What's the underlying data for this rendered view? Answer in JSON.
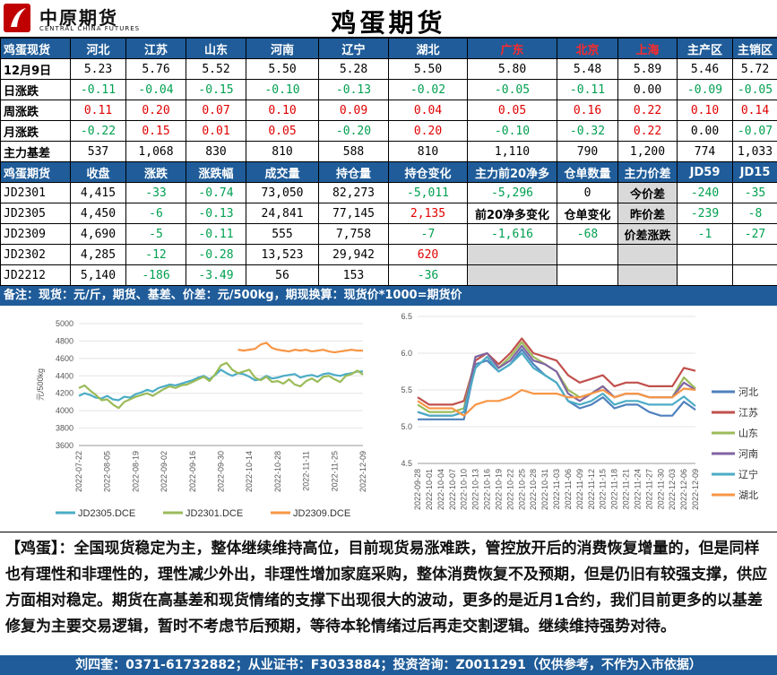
{
  "header": {
    "brand_cn": "中原期货",
    "brand_en": "CENTRAL CHINA FUTURES",
    "title": "鸡蛋期货"
  },
  "spot": {
    "head": "鸡蛋现货",
    "regions": [
      "河北",
      "江苏",
      "山东",
      "河南",
      "辽宁",
      "湖北",
      "广东",
      "北京",
      "上海",
      "主产区",
      "主销区"
    ],
    "red_regions": [
      6,
      7,
      8
    ],
    "rows": [
      {
        "label": "12月9日",
        "values": [
          "5.23",
          "5.76",
          "5.52",
          "5.50",
          "5.28",
          "5.50",
          "5.80",
          "5.48",
          "5.89",
          "5.46",
          "5.72"
        ]
      },
      {
        "label": "日涨跌",
        "values": [
          "-0.11",
          "-0.04",
          "-0.15",
          "-0.10",
          "-0.13",
          "-0.02",
          "-0.05",
          "-0.11",
          "0.00",
          "-0.09",
          "-0.05"
        ]
      },
      {
        "label": "周涨跌",
        "values": [
          "0.11",
          "0.20",
          "0.07",
          "0.10",
          "0.09",
          "0.04",
          "0.05",
          "0.16",
          "0.22",
          "0.10",
          "0.14"
        ]
      },
      {
        "label": "月涨跌",
        "values": [
          "-0.22",
          "0.15",
          "0.01",
          "0.05",
          "-0.20",
          "0.20",
          "-0.10",
          "-0.32",
          "0.22",
          "0.00",
          "-0.07"
        ]
      },
      {
        "label": "主力基差",
        "values": [
          "537",
          "1,068",
          "830",
          "810",
          "588",
          "810",
          "1,110",
          "790",
          "1,200",
          "774",
          "1,033"
        ]
      }
    ]
  },
  "futures": {
    "head": [
      "鸡蛋期货",
      "收盘",
      "涨跌",
      "涨跌幅",
      "成交量",
      "持仓量",
      "持仓变化",
      "主力前20净多",
      "仓单数量",
      "主力价差",
      "JD59",
      "JD15"
    ],
    "rows": [
      {
        "contract": "JD2301",
        "close": "4,415",
        "chg": "-33",
        "pct": "-0.74",
        "vol": "73,050",
        "oi": "82,273",
        "oi_chg": "-5,011"
      },
      {
        "contract": "JD2305",
        "close": "4,450",
        "chg": "-6",
        "pct": "-0.13",
        "vol": "24,841",
        "oi": "77,145",
        "oi_chg": "2,135"
      },
      {
        "contract": "JD2309",
        "close": "4,690",
        "chg": "-5",
        "pct": "-0.11",
        "vol": "555",
        "oi": "7,758",
        "oi_chg": "-7"
      },
      {
        "contract": "JD2302",
        "close": "4,285",
        "chg": "-12",
        "pct": "-0.28",
        "vol": "13,523",
        "oi": "29,942",
        "oi_chg": "620"
      },
      {
        "contract": "JD2212",
        "close": "5,140",
        "chg": "-186",
        "pct": "-3.49",
        "vol": "56",
        "oi": "153",
        "oi_chg": "-36"
      }
    ],
    "net_long_top20": "-5,296",
    "net_long_change_label": "前20净多变化",
    "net_long_change": "-1,616",
    "warrant_qty": "0",
    "warrant_change_label": "仓单变化",
    "warrant_change": "-68",
    "spread_labels": [
      "今价差",
      "昨价差",
      "价差涨跌"
    ],
    "jd59": [
      "-240",
      "-239",
      "-1"
    ],
    "jd15": [
      "-35",
      "-8",
      "-27"
    ]
  },
  "note": "备注：现货：元/斤，期货、基差、价差：元/500kg，期现换算：现货价*1000=期货价",
  "chart_data": [
    {
      "type": "line",
      "ylabel": "元/500kg",
      "ylim": [
        3600,
        5000
      ],
      "yticks": [
        3600,
        3800,
        4000,
        4200,
        4400,
        4600,
        4800,
        5000
      ],
      "x_ticks": [
        "2022-07-22",
        "2022-08-05",
        "2022-08-19",
        "2022-09-02",
        "2022-09-16",
        "2022-09-30",
        "2022-10-14",
        "2022-10-28",
        "2022-11-11",
        "2022-11-25",
        "2022-12-09"
      ],
      "series": [
        {
          "name": "JD2305.DCE",
          "color": "#4bacc6",
          "x": [
            0,
            2,
            4,
            6,
            8,
            10,
            12,
            14,
            16,
            18,
            20,
            22,
            24,
            26,
            28,
            30,
            32,
            34,
            36,
            38,
            40,
            42,
            44,
            46,
            48,
            50,
            52,
            54,
            56,
            58,
            60,
            62,
            64,
            66,
            68,
            70,
            72,
            74,
            76,
            78,
            80,
            82,
            84,
            86,
            88,
            90,
            92,
            94,
            96,
            98,
            100
          ],
          "values": [
            4170,
            4200,
            4180,
            4150,
            4140,
            4170,
            4130,
            4120,
            4160,
            4150,
            4190,
            4210,
            4240,
            4220,
            4260,
            4280,
            4300,
            4290,
            4310,
            4330,
            4350,
            4380,
            4400,
            4360,
            4410,
            4470,
            4430,
            4400,
            4430,
            4420,
            4390,
            4350,
            4360,
            4400,
            4370,
            4380,
            4400,
            4410,
            4420,
            4380,
            4400,
            4410,
            4390,
            4420,
            4430,
            4410,
            4400,
            4420,
            4430,
            4450,
            4450
          ]
        },
        {
          "name": "JD2301.DCE",
          "color": "#9bbb59",
          "x": [
            0,
            2,
            4,
            6,
            8,
            10,
            12,
            14,
            16,
            18,
            20,
            22,
            24,
            26,
            28,
            30,
            32,
            34,
            36,
            38,
            40,
            42,
            44,
            46,
            48,
            50,
            52,
            54,
            56,
            58,
            60,
            62,
            64,
            66,
            68,
            70,
            72,
            74,
            76,
            78,
            80,
            82,
            84,
            86,
            88,
            90,
            92,
            94,
            96,
            98,
            100
          ],
          "values": [
            4260,
            4290,
            4230,
            4180,
            4120,
            4130,
            4070,
            4030,
            4100,
            4130,
            4160,
            4180,
            4200,
            4170,
            4210,
            4250,
            4280,
            4260,
            4290,
            4300,
            4330,
            4360,
            4390,
            4340,
            4420,
            4520,
            4550,
            4470,
            4430,
            4450,
            4470,
            4380,
            4350,
            4390,
            4330,
            4340,
            4310,
            4360,
            4300,
            4280,
            4340,
            4370,
            4330,
            4390,
            4400,
            4360,
            4330,
            4400,
            4420,
            4460,
            4415
          ]
        },
        {
          "name": "JD2309.DCE",
          "color": "#f79646",
          "x": [
            56,
            58,
            60,
            62,
            64,
            66,
            68,
            70,
            72,
            74,
            76,
            78,
            80,
            82,
            84,
            86,
            88,
            90,
            92,
            94,
            96,
            98,
            100
          ],
          "values": [
            4700,
            4690,
            4700,
            4710,
            4760,
            4780,
            4720,
            4700,
            4690,
            4680,
            4700,
            4690,
            4700,
            4680,
            4690,
            4700,
            4680,
            4670,
            4680,
            4690,
            4700,
            4690,
            4690
          ]
        }
      ]
    },
    {
      "type": "line",
      "ylim": [
        4.5,
        6.5
      ],
      "yticks": [
        4.5,
        5.0,
        5.5,
        6.0,
        6.5
      ],
      "x_ticks": [
        "2022-09-28",
        "2022-10-01",
        "2022-10-04",
        "2022-10-07",
        "2022-10-10",
        "2022-10-13",
        "2022-10-16",
        "2022-10-19",
        "2022-10-22",
        "2022-10-25",
        "2022-10-28",
        "2022-10-31",
        "2022-11-03",
        "2022-11-06",
        "2022-11-09",
        "2022-11-12",
        "2022-11-15",
        "2022-11-18",
        "2022-11-21",
        "2022-11-24",
        "2022-11-27",
        "2022-11-30",
        "2022-12-03",
        "2022-12-06",
        "2022-12-09"
      ],
      "series": [
        {
          "name": "河北",
          "color": "#4f81bd",
          "x": [
            0,
            1,
            2,
            3,
            4,
            5,
            6,
            7,
            8,
            9,
            10,
            11,
            12,
            13,
            14,
            15,
            16,
            17,
            18,
            19,
            20,
            21,
            22,
            23,
            24
          ],
          "values": [
            5.1,
            5.1,
            5.1,
            5.1,
            5.1,
            5.85,
            5.9,
            5.75,
            5.85,
            6.05,
            5.85,
            5.7,
            5.6,
            5.35,
            5.25,
            5.3,
            5.4,
            5.25,
            5.3,
            5.3,
            5.2,
            5.15,
            5.15,
            5.34,
            5.23
          ]
        },
        {
          "name": "江苏",
          "color": "#c0504d",
          "x": [
            0,
            1,
            2,
            3,
            4,
            5,
            6,
            7,
            8,
            9,
            10,
            11,
            12,
            13,
            14,
            15,
            16,
            17,
            18,
            19,
            20,
            21,
            22,
            23,
            24
          ],
          "values": [
            5.4,
            5.3,
            5.3,
            5.3,
            5.35,
            5.9,
            6.0,
            5.85,
            6.0,
            6.2,
            6.0,
            5.95,
            5.9,
            5.7,
            5.6,
            5.65,
            5.7,
            5.55,
            5.6,
            5.6,
            5.55,
            5.55,
            5.55,
            5.8,
            5.76
          ]
        },
        {
          "name": "山东",
          "color": "#9bbb59",
          "x": [
            0,
            1,
            2,
            3,
            4,
            5,
            6,
            7,
            8,
            9,
            10,
            11,
            12,
            13,
            14,
            15,
            16,
            17,
            18,
            19,
            20,
            21,
            22,
            23,
            24
          ],
          "values": [
            5.3,
            5.2,
            5.2,
            5.2,
            5.25,
            5.95,
            6.0,
            5.8,
            5.95,
            6.15,
            5.95,
            5.85,
            5.75,
            5.5,
            5.4,
            5.45,
            5.55,
            5.4,
            5.45,
            5.45,
            5.4,
            5.4,
            5.4,
            5.67,
            5.52
          ]
        },
        {
          "name": "河南",
          "color": "#8064a2",
          "x": [
            0,
            1,
            2,
            3,
            4,
            5,
            6,
            7,
            8,
            9,
            10,
            11,
            12,
            13,
            14,
            15,
            16,
            17,
            18,
            19,
            20,
            21,
            22,
            23,
            24
          ],
          "values": [
            5.2,
            5.15,
            5.15,
            5.15,
            5.2,
            5.95,
            6.0,
            5.8,
            5.9,
            6.1,
            5.9,
            5.85,
            5.75,
            5.45,
            5.35,
            5.45,
            5.55,
            5.4,
            5.45,
            5.45,
            5.4,
            5.4,
            5.4,
            5.6,
            5.5
          ]
        },
        {
          "name": "辽宁",
          "color": "#4bacc6",
          "x": [
            0,
            1,
            2,
            3,
            4,
            5,
            6,
            7,
            8,
            9,
            10,
            11,
            12,
            13,
            14,
            15,
            16,
            17,
            18,
            19,
            20,
            21,
            22,
            23,
            24
          ],
          "values": [
            5.2,
            5.15,
            5.15,
            5.15,
            5.2,
            5.8,
            5.95,
            5.75,
            5.85,
            6.0,
            5.8,
            5.7,
            5.6,
            5.35,
            5.3,
            5.35,
            5.45,
            5.3,
            5.35,
            5.35,
            5.3,
            5.3,
            5.3,
            5.41,
            5.28
          ]
        },
        {
          "name": "湖北",
          "color": "#f79646",
          "x": [
            0,
            1,
            2,
            3,
            4,
            5,
            6,
            7,
            8,
            9,
            10,
            11,
            12,
            13,
            14,
            15,
            16,
            17,
            18,
            19,
            20,
            21,
            22,
            23,
            24
          ],
          "values": [
            5.35,
            5.25,
            5.25,
            5.25,
            5.15,
            5.3,
            5.35,
            5.35,
            5.4,
            5.5,
            5.45,
            5.45,
            5.45,
            5.4,
            5.4,
            5.45,
            5.5,
            5.4,
            5.45,
            5.45,
            5.4,
            5.4,
            5.4,
            5.52,
            5.5
          ]
        }
      ]
    }
  ],
  "commentary": "【鸡蛋】：全国现货稳定为主，整体继续维持高位，目前现货易涨难跌，管控放开后的消费恢复增量的，但是同样也有理性和非理性的，理性减少外出，非理性增加家庭采购，整体消费恢复不及预期，但是仍旧有较强支撑，供应方面相对稳定。期货在高基差和现货情绪的支撑下出现很大的波动，更多的是近月1合约，我们目前更多的以基差修复为主要交易逻辑，暂时不考虑节后预期，等待本轮情绪过后再走交割逻辑。继续维持强势对待。",
  "footer": "刘四奎：0371-61732882；从业证书：F3033884；投资咨询：Z0011291（仅供参考，不作为入市依据）"
}
